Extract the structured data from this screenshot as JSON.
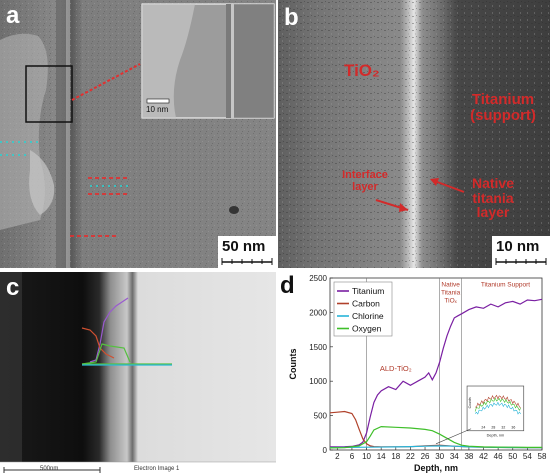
{
  "panel_a": {
    "label": "a",
    "scale_bar": "50 nm",
    "inset_scale_bar": "10 nm"
  },
  "panel_b": {
    "label": "b",
    "scale_bar": "10 nm",
    "label_tio2": "TiO₂",
    "label_titanium_line1": "Titanium",
    "label_titanium_line2": "(support)",
    "label_interface_line1": "Interface",
    "label_interface_line2": "layer",
    "label_native_line1": "Native",
    "label_native_line2": "titania",
    "label_native_line3": "layer"
  },
  "panel_c": {
    "label": "c",
    "scale_bar": "500nm",
    "image_caption": "Electron Image 1"
  },
  "panel_d": {
    "label": "d",
    "colors": {
      "Titanium": "#7a1fa2",
      "Carbon": "#b0412a",
      "Chlorine": "#28b4d8",
      "Oxygen": "#3fbf2a"
    },
    "annotations": {
      "ald": "ALD-TiO₂",
      "native_line1": "Native",
      "native_line2": "Titania",
      "native_line3": "TiOₓ",
      "support": "Titanium Support"
    },
    "inset": {
      "xlabel": "Depth, nm",
      "ylabel": "Counts",
      "xticks": [
        "24",
        "28",
        "32",
        "36"
      ]
    }
  },
  "chart_data": {
    "type": "line",
    "xlabel": "Depth, nm",
    "ylabel": "Counts",
    "xlim": [
      0,
      58
    ],
    "ylim": [
      0,
      2500
    ],
    "xticks": [
      2,
      6,
      10,
      14,
      18,
      22,
      26,
      30,
      34,
      38,
      42,
      46,
      50,
      54,
      58
    ],
    "yticks": [
      0,
      500,
      1000,
      1500,
      2000,
      2500
    ],
    "legend_position": "top-left",
    "vertical_lines": [
      10,
      30,
      36
    ],
    "series": [
      {
        "name": "Titanium",
        "x": [
          0,
          4,
          6,
          8,
          9,
          10,
          11,
          12,
          13,
          14,
          16,
          18,
          20,
          22,
          24,
          26,
          27,
          28,
          29,
          30,
          31,
          32,
          33,
          34,
          35,
          36,
          38,
          40,
          42,
          44,
          46,
          48,
          50,
          52,
          54,
          56,
          58
        ],
        "y": [
          45,
          48,
          52,
          75,
          115,
          250,
          480,
          690,
          800,
          860,
          920,
          880,
          1000,
          940,
          1000,
          1060,
          1120,
          1020,
          1120,
          1280,
          1480,
          1660,
          1800,
          1920,
          1950,
          1980,
          2040,
          2080,
          2060,
          2120,
          2080,
          2140,
          2160,
          2120,
          2180,
          2170,
          2190
        ]
      },
      {
        "name": "Carbon",
        "x": [
          0,
          2,
          4,
          6,
          7,
          8,
          9,
          10,
          11,
          12,
          14,
          18,
          22,
          26,
          30,
          34,
          38,
          42,
          46,
          50,
          54,
          58
        ],
        "y": [
          540,
          550,
          560,
          530,
          440,
          300,
          160,
          90,
          60,
          50,
          45,
          45,
          48,
          60,
          70,
          55,
          45,
          40,
          38,
          36,
          35,
          35
        ]
      },
      {
        "name": "Chlorine",
        "x": [
          0,
          10,
          18,
          22,
          26,
          30,
          34,
          38,
          42,
          46,
          50,
          54,
          58
        ],
        "y": [
          35,
          40,
          45,
          50,
          55,
          60,
          55,
          45,
          40,
          38,
          36,
          35,
          35
        ]
      },
      {
        "name": "Oxygen",
        "x": [
          0,
          4,
          8,
          10,
          11,
          12,
          14,
          18,
          22,
          26,
          28,
          30,
          32,
          34,
          36,
          38,
          42,
          46,
          50,
          54,
          58
        ],
        "y": [
          30,
          35,
          60,
          120,
          200,
          290,
          340,
          330,
          320,
          300,
          280,
          230,
          170,
          110,
          70,
          55,
          45,
          42,
          40,
          38,
          38
        ]
      }
    ]
  }
}
